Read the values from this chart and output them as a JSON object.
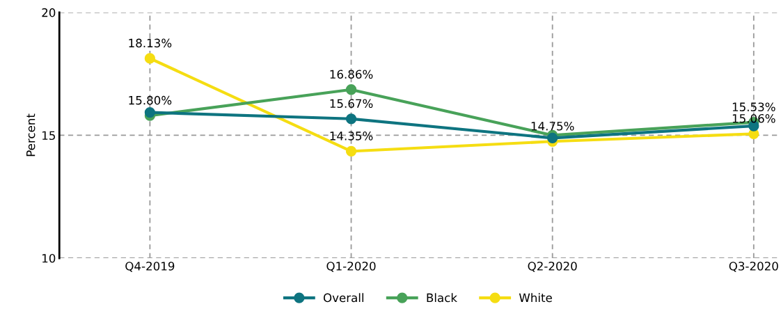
{
  "chart_data": {
    "type": "line",
    "ylabel": "Percent",
    "categories": [
      "Q4-2019",
      "Q1-2020",
      "Q2-2020",
      "Q3-2020"
    ],
    "series": [
      {
        "name": "Overall",
        "color": "#0e7480",
        "values": [
          15.93,
          15.67,
          14.89,
          15.38
        ],
        "value_labels": [
          null,
          "15.67%",
          null,
          null
        ]
      },
      {
        "name": "Black",
        "color": "#48a259",
        "values": [
          15.8,
          16.86,
          15.0,
          15.53
        ],
        "value_labels": [
          "15.80%",
          "16.86%",
          null,
          "15.53%"
        ]
      },
      {
        "name": "White",
        "color": "#f5dd12",
        "values": [
          18.13,
          14.35,
          14.75,
          15.06
        ],
        "value_labels": [
          "18.13%",
          "14.35%",
          "14.75%",
          "15.06%"
        ]
      }
    ],
    "ylim": [
      10,
      20
    ],
    "yticks": [
      10,
      15,
      20
    ],
    "grid": true,
    "legend": "bottom",
    "marker": "circle",
    "line_style": "solid"
  }
}
